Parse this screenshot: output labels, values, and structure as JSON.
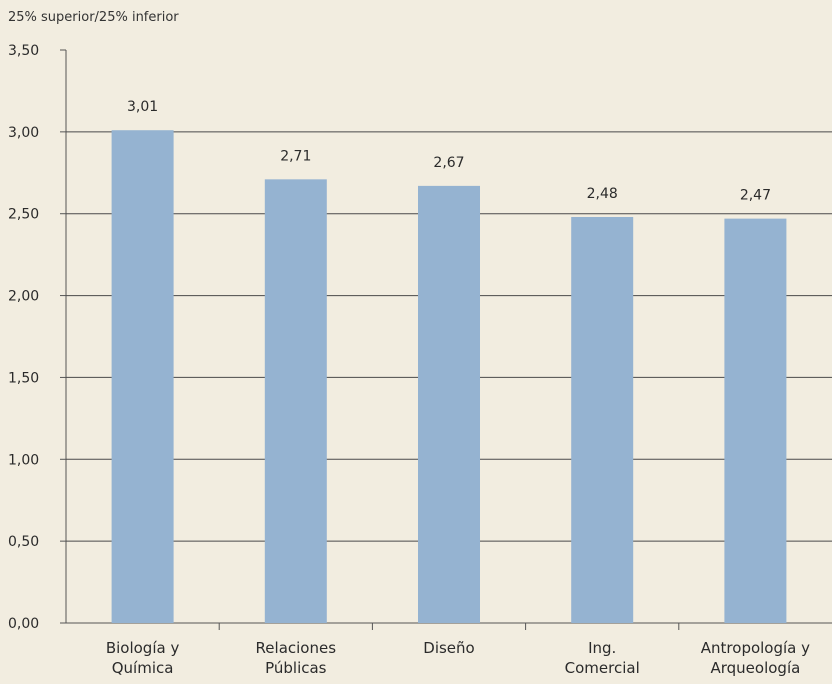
{
  "chart_data": {
    "type": "bar",
    "ylabel": "25% superior/25% inferior",
    "categories": [
      [
        "Biología y",
        "Química"
      ],
      [
        "Relaciones",
        "Públicas"
      ],
      [
        "Diseño"
      ],
      [
        "Ing.",
        "Comercial"
      ],
      [
        "Antropología y",
        "Arqueología"
      ]
    ],
    "values": [
      3.01,
      2.71,
      2.67,
      2.48,
      2.47
    ],
    "value_labels": [
      "3,01",
      "2,71",
      "2,67",
      "2,48",
      "2,47"
    ],
    "y_ticks": [
      0,
      0.5,
      1.0,
      1.5,
      2.0,
      2.5,
      3.0,
      3.5
    ],
    "y_tick_labels": [
      "0,00",
      "0,50",
      "1,00",
      "1,50",
      "2,00",
      "2,50",
      "3,00",
      "3,50"
    ],
    "ylim": [
      0,
      3.5
    ],
    "grid": true,
    "bar_color": "#95b3d1",
    "grid_color": "#4a4a4a",
    "background": "#f2ede0"
  }
}
